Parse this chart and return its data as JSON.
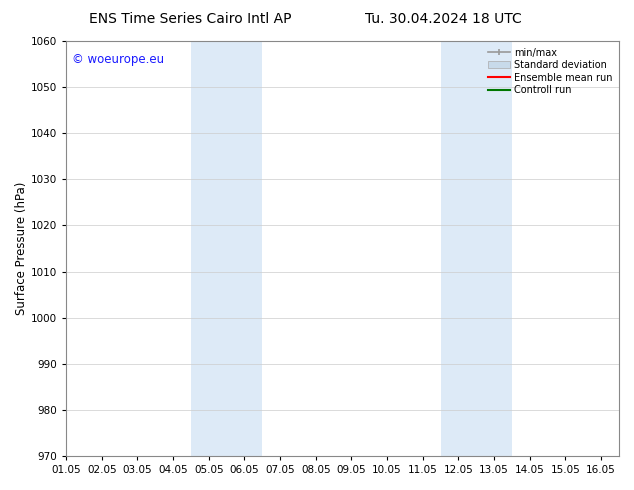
{
  "title_left": "ENS Time Series Cairo Intl AP",
  "title_right": "Tu. 30.04.2024 18 UTC",
  "ylabel": "Surface Pressure (hPa)",
  "ylim": [
    970,
    1060
  ],
  "yticks": [
    970,
    980,
    990,
    1000,
    1010,
    1020,
    1030,
    1040,
    1050,
    1060
  ],
  "xlim": [
    0,
    15.5
  ],
  "xtick_labels": [
    "01.05",
    "02.05",
    "03.05",
    "04.05",
    "05.05",
    "06.05",
    "07.05",
    "08.05",
    "09.05",
    "10.05",
    "11.05",
    "12.05",
    "13.05",
    "14.05",
    "15.05",
    "16.05"
  ],
  "xtick_positions": [
    0,
    1,
    2,
    3,
    4,
    5,
    6,
    7,
    8,
    9,
    10,
    11,
    12,
    13,
    14,
    15
  ],
  "shaded_bands": [
    {
      "x_start": 3.5,
      "x_end": 5.5
    },
    {
      "x_start": 10.5,
      "x_end": 12.5
    }
  ],
  "shaded_color": "#ddeaf7",
  "watermark_text": "© woeurope.eu",
  "watermark_color": "#1a1aff",
  "background_color": "#ffffff",
  "legend_items": [
    {
      "label": "min/max",
      "color": "#999999",
      "type": "minmax"
    },
    {
      "label": "Standard deviation",
      "color": "#c8daea",
      "type": "patch"
    },
    {
      "label": "Ensemble mean run",
      "color": "#ff0000",
      "type": "line"
    },
    {
      "label": "Controll run",
      "color": "#007700",
      "type": "line"
    }
  ],
  "grid_color": "#cccccc",
  "title_fontsize": 10,
  "tick_fontsize": 7.5,
  "ylabel_fontsize": 8.5,
  "watermark_fontsize": 8.5
}
